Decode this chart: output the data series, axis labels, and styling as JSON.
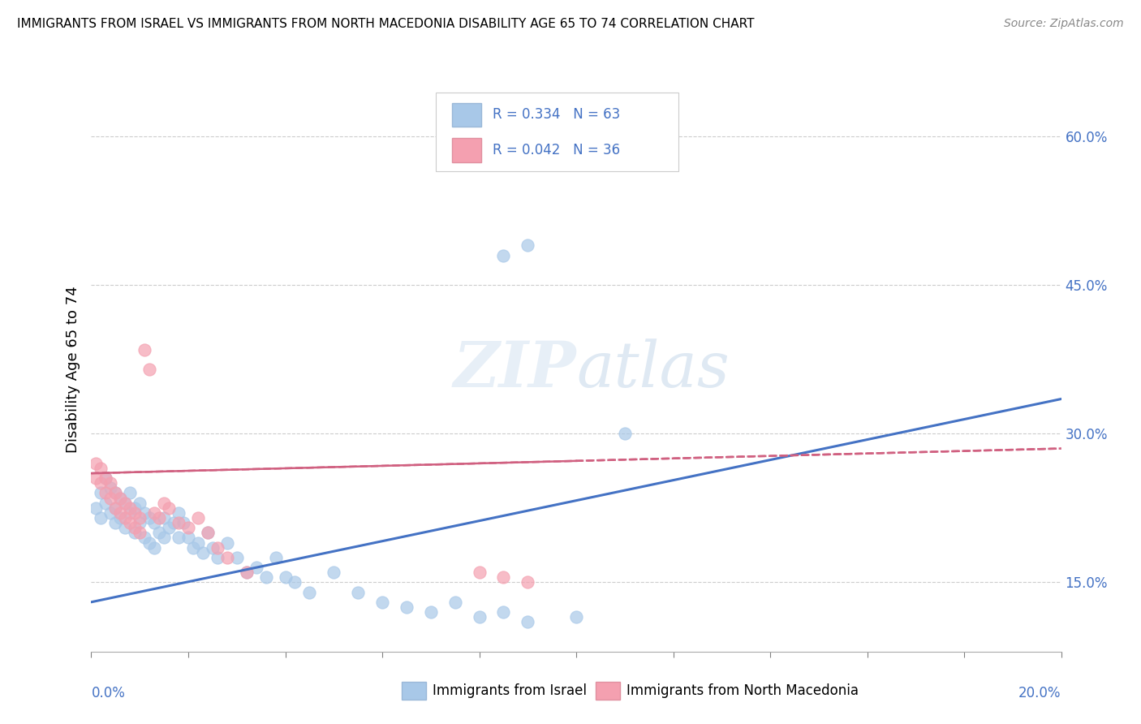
{
  "title": "IMMIGRANTS FROM ISRAEL VS IMMIGRANTS FROM NORTH MACEDONIA DISABILITY AGE 65 TO 74 CORRELATION CHART",
  "source": "Source: ZipAtlas.com",
  "xlabel_bottom_left": "0.0%",
  "xlabel_bottom_right": "20.0%",
  "ylabel": "Disability Age 65 to 74",
  "legend1_label": "Immigrants from Israel",
  "legend2_label": "Immigrants from North Macedonia",
  "R1": 0.334,
  "N1": 63,
  "R2": 0.042,
  "N2": 36,
  "color_israel": "#a8c8e8",
  "color_macedonia": "#f4a0b0",
  "color_israel_line": "#4472c4",
  "color_macedonia_line": "#d06080",
  "xlim": [
    0.0,
    0.2
  ],
  "ylim": [
    0.08,
    0.65
  ],
  "yticks": [
    0.15,
    0.3,
    0.45,
    0.6
  ],
  "ytick_labels": [
    "15.0%",
    "30.0%",
    "45.0%",
    "60.0%"
  ],
  "watermark": "ZIPatlas",
  "israel_x": [
    0.001,
    0.002,
    0.002,
    0.003,
    0.003,
    0.004,
    0.004,
    0.005,
    0.005,
    0.005,
    0.006,
    0.006,
    0.007,
    0.007,
    0.008,
    0.008,
    0.009,
    0.009,
    0.01,
    0.01,
    0.011,
    0.011,
    0.012,
    0.012,
    0.013,
    0.013,
    0.014,
    0.015,
    0.015,
    0.016,
    0.017,
    0.018,
    0.018,
    0.019,
    0.02,
    0.021,
    0.022,
    0.023,
    0.024,
    0.025,
    0.026,
    0.028,
    0.03,
    0.032,
    0.034,
    0.036,
    0.038,
    0.04,
    0.042,
    0.045,
    0.05,
    0.055,
    0.06,
    0.065,
    0.07,
    0.075,
    0.08,
    0.085,
    0.09,
    0.1,
    0.085,
    0.09,
    0.11
  ],
  "israel_y": [
    0.225,
    0.24,
    0.215,
    0.255,
    0.23,
    0.245,
    0.22,
    0.24,
    0.225,
    0.21,
    0.235,
    0.215,
    0.23,
    0.205,
    0.24,
    0.22,
    0.225,
    0.2,
    0.23,
    0.21,
    0.22,
    0.195,
    0.215,
    0.19,
    0.21,
    0.185,
    0.2,
    0.195,
    0.215,
    0.205,
    0.21,
    0.22,
    0.195,
    0.21,
    0.195,
    0.185,
    0.19,
    0.18,
    0.2,
    0.185,
    0.175,
    0.19,
    0.175,
    0.16,
    0.165,
    0.155,
    0.175,
    0.155,
    0.15,
    0.14,
    0.16,
    0.14,
    0.13,
    0.125,
    0.12,
    0.13,
    0.115,
    0.12,
    0.11,
    0.115,
    0.48,
    0.49,
    0.3
  ],
  "macedonia_x": [
    0.001,
    0.001,
    0.002,
    0.002,
    0.003,
    0.003,
    0.004,
    0.004,
    0.005,
    0.005,
    0.006,
    0.006,
    0.007,
    0.007,
    0.008,
    0.008,
    0.009,
    0.009,
    0.01,
    0.01,
    0.011,
    0.012,
    0.013,
    0.014,
    0.015,
    0.016,
    0.018,
    0.02,
    0.022,
    0.024,
    0.026,
    0.028,
    0.032,
    0.08,
    0.085,
    0.09
  ],
  "macedonia_y": [
    0.255,
    0.27,
    0.25,
    0.265,
    0.24,
    0.255,
    0.235,
    0.25,
    0.24,
    0.225,
    0.235,
    0.22,
    0.23,
    0.215,
    0.225,
    0.21,
    0.22,
    0.205,
    0.215,
    0.2,
    0.385,
    0.365,
    0.22,
    0.215,
    0.23,
    0.225,
    0.21,
    0.205,
    0.215,
    0.2,
    0.185,
    0.175,
    0.16,
    0.16,
    0.155,
    0.15
  ],
  "israel_line_x0": 0.0,
  "israel_line_y0": 0.13,
  "israel_line_x1": 0.2,
  "israel_line_y1": 0.335,
  "macedonia_line_x0": 0.0,
  "macedonia_line_y0": 0.26,
  "macedonia_line_x1": 0.2,
  "macedonia_line_y1": 0.285
}
